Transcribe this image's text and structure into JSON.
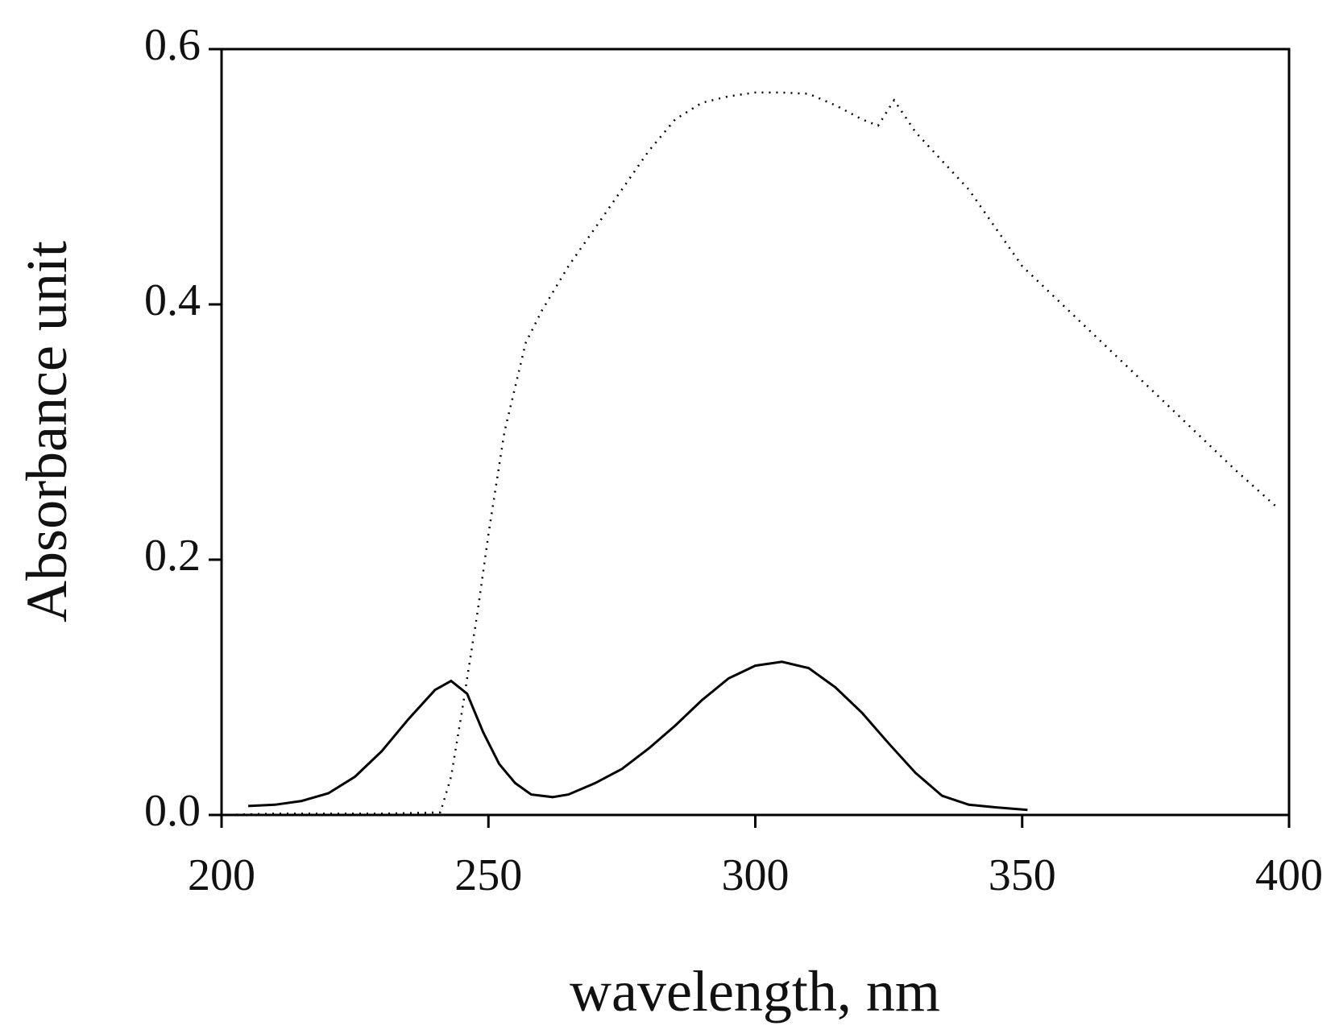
{
  "chart_data": {
    "type": "line",
    "x_label": "wavelength, nm",
    "y_label": "Absorbance unit",
    "xlim": [
      200,
      400
    ],
    "xticks": [
      200,
      250,
      300,
      350,
      400
    ],
    "ylim": [
      0,
      0.6
    ],
    "yticks": [
      {
        "value": 0,
        "label": "0.0"
      },
      0.2,
      0.4,
      0.6
    ],
    "series": [
      {
        "color": "#000000",
        "style": "solid",
        "x": [
          205,
          210,
          215,
          220,
          225,
          230,
          235,
          240,
          243,
          246,
          249,
          252,
          255,
          258,
          262,
          265,
          270,
          275,
          280,
          285,
          290,
          295,
          300,
          305,
          310,
          315,
          320,
          325,
          330,
          335,
          340,
          345,
          351
        ],
        "values": [
          0.007,
          0.008,
          0.011,
          0.017,
          0.03,
          0.05,
          0.075,
          0.098,
          0.105,
          0.095,
          0.065,
          0.04,
          0.025,
          0.016,
          0.014,
          0.016,
          0.025,
          0.036,
          0.052,
          0.07,
          0.09,
          0.107,
          0.117,
          0.12,
          0.115,
          0.1,
          0.08,
          0.056,
          0.033,
          0.015,
          0.008,
          0.006,
          0.004
        ]
      },
      {
        "color": "#000000",
        "style": "dotted",
        "x": [
          200,
          210,
          220,
          230,
          241,
          243,
          245,
          248,
          250,
          253,
          257,
          260,
          265,
          270,
          275,
          280,
          285,
          290,
          295,
          300,
          305,
          310,
          315,
          320,
          323,
          326,
          330,
          340,
          350,
          360,
          370,
          380,
          390,
          398
        ],
        "values": [
          0,
          0.001,
          0.001,
          0.001,
          0.002,
          0.03,
          0.08,
          0.16,
          0.22,
          0.3,
          0.37,
          0.395,
          0.43,
          0.46,
          0.49,
          0.52,
          0.545,
          0.558,
          0.563,
          0.566,
          0.566,
          0.565,
          0.556,
          0.545,
          0.54,
          0.56,
          0.535,
          0.49,
          0.43,
          0.39,
          0.35,
          0.31,
          0.27,
          0.24
        ]
      }
    ]
  }
}
